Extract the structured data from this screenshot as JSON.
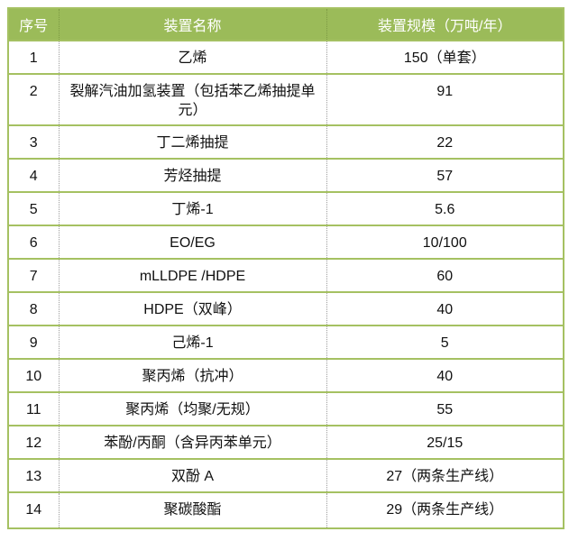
{
  "table": {
    "headers": [
      "序号",
      "装置名称",
      "装置规模（万吨/年）"
    ],
    "rows": [
      {
        "no": "1",
        "name": "乙烯",
        "scale": "150（单套）"
      },
      {
        "no": "2",
        "name": "裂解汽油加氢装置（包括苯乙烯抽提单元）",
        "scale": "91"
      },
      {
        "no": "3",
        "name": "丁二烯抽提",
        "scale": "22"
      },
      {
        "no": "4",
        "name": "芳烃抽提",
        "scale": "57"
      },
      {
        "no": "5",
        "name": "丁烯-1",
        "scale": "5.6"
      },
      {
        "no": "6",
        "name": "EO/EG",
        "scale": "10/100"
      },
      {
        "no": "7",
        "name": "mLLDPE /HDPE",
        "scale": "60"
      },
      {
        "no": "8",
        "name": "HDPE（双峰）",
        "scale": "40"
      },
      {
        "no": "9",
        "name": "己烯-1",
        "scale": "5"
      },
      {
        "no": "10",
        "name": "聚丙烯（抗冲）",
        "scale": "40"
      },
      {
        "no": "11",
        "name": "聚丙烯（均聚/无规）",
        "scale": "55"
      },
      {
        "no": "12",
        "name": "苯酚/丙酮（含异丙苯单元）",
        "scale": "25/15"
      },
      {
        "no": "13",
        "name": "双酚 A",
        "scale": "27（两条生产线）"
      },
      {
        "no": "14",
        "name": "聚碳酸酯",
        "scale": "29（两条生产线）"
      }
    ],
    "colors": {
      "header_bg": "#9bbb59",
      "header_text": "#ffffff",
      "border_green": "#a5c162",
      "divider_gray": "#9e9e9e",
      "header_divider": "#7d9a44"
    }
  }
}
